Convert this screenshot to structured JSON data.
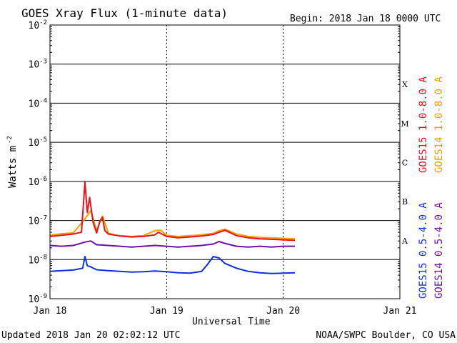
{
  "chart_data": {
    "type": "line",
    "title": "GOES Xray Flux (1-minute data)",
    "begin_label": "Begin:  2018 Jan 18 0000 UTC",
    "xlabel": "Universal Time",
    "ylabel": "Watts m",
    "ylabel_exponent": "-2",
    "y_scale": "log",
    "ylim": [
      1e-09,
      0.01
    ],
    "y_ticks": [
      {
        "value": 0.01,
        "mantissa": "10",
        "exp": "-2"
      },
      {
        "value": 0.001,
        "mantissa": "10",
        "exp": "-3"
      },
      {
        "value": 0.0001,
        "mantissa": "10",
        "exp": "-4"
      },
      {
        "value": 1e-05,
        "mantissa": "10",
        "exp": "-5"
      },
      {
        "value": 1e-06,
        "mantissa": "10",
        "exp": "-6"
      },
      {
        "value": 1e-07,
        "mantissa": "10",
        "exp": "-7"
      },
      {
        "value": 1e-08,
        "mantissa": "10",
        "exp": "-8"
      },
      {
        "value": 1e-09,
        "mantissa": "10",
        "exp": "-9"
      }
    ],
    "x_ticks": [
      {
        "value": 0,
        "label": "Jan 18"
      },
      {
        "value": 1,
        "label": "Jan 19"
      },
      {
        "value": 2,
        "label": "Jan 20"
      },
      {
        "value": 3,
        "label": "Jan 21"
      }
    ],
    "xlim": [
      0,
      3
    ],
    "flare_classes": [
      {
        "label": "X",
        "value": 0.00031623
      },
      {
        "label": "M",
        "value": 3.1623e-05
      },
      {
        "label": "C",
        "value": 3.1623e-06
      },
      {
        "label": "B",
        "value": 3.1623e-07
      },
      {
        "label": "A",
        "value": 3.1623e-08
      }
    ],
    "legend_right": [
      {
        "text": "GOES15 1.0-8.0 A",
        "color": "#e8101a"
      },
      {
        "text": "GOES14 1.0-8.0 A",
        "color": "#f0a000"
      }
    ],
    "legend_left": [
      {
        "text": "GOES15 0.5-4.0 A",
        "color": "#1030e0"
      },
      {
        "text": "GOES14 0.5-4.0 A",
        "color": "#7010a8"
      }
    ],
    "series": [
      {
        "name": "GOES14 1.0-8.0 A",
        "color": "#f0a000",
        "x": [
          0,
          0.1,
          0.2,
          0.3,
          0.35,
          0.4,
          0.45,
          0.5,
          0.55,
          0.6,
          0.7,
          0.8,
          0.9,
          0.95,
          1.0,
          1.1,
          1.2,
          1.3,
          1.4,
          1.45,
          1.5,
          1.55,
          1.6,
          1.7,
          1.8,
          1.9,
          2.0,
          2.1
        ],
        "y": [
          4.2e-08,
          4.6e-08,
          4.8e-08,
          1.1e-07,
          1.8e-07,
          5.5e-08,
          1.3e-07,
          4.8e-08,
          4.3e-08,
          4.1e-08,
          3.9e-08,
          4.1e-08,
          5.5e-08,
          5.6e-08,
          4.2e-08,
          3.9e-08,
          4.1e-08,
          4.3e-08,
          4.7e-08,
          5.5e-08,
          6e-08,
          5.2e-08,
          4.5e-08,
          3.9e-08,
          3.7e-08,
          3.6e-08,
          3.5e-08,
          3.4e-08
        ]
      },
      {
        "name": "GOES15 1.0-8.0 A",
        "color": "#e8101a",
        "x": [
          0,
          0.1,
          0.2,
          0.27,
          0.3,
          0.32,
          0.34,
          0.37,
          0.4,
          0.43,
          0.45,
          0.47,
          0.5,
          0.6,
          0.7,
          0.8,
          0.9,
          0.93,
          1.0,
          1.1,
          1.2,
          1.3,
          1.4,
          1.45,
          1.5,
          1.55,
          1.6,
          1.7,
          1.8,
          1.9,
          2.0,
          2.1
        ],
        "y": [
          3.9e-08,
          4.2e-08,
          4.5e-08,
          5e-08,
          9.5e-07,
          1.6e-07,
          3.9e-07,
          9e-08,
          4.8e-08,
          1e-07,
          1.2e-07,
          5.5e-08,
          4.5e-08,
          4e-08,
          3.8e-08,
          3.9e-08,
          4.3e-08,
          5e-08,
          3.9e-08,
          3.6e-08,
          3.8e-08,
          4e-08,
          4.4e-08,
          5e-08,
          5.6e-08,
          4.8e-08,
          4.1e-08,
          3.6e-08,
          3.4e-08,
          3.3e-08,
          3.2e-08,
          3.1e-08
        ]
      },
      {
        "name": "GOES14 0.5-4.0 A",
        "color": "#7010a8",
        "x": [
          0,
          0.1,
          0.2,
          0.3,
          0.35,
          0.4,
          0.5,
          0.6,
          0.7,
          0.8,
          0.9,
          1.0,
          1.1,
          1.2,
          1.3,
          1.4,
          1.45,
          1.5,
          1.6,
          1.7,
          1.8,
          1.9,
          2.0,
          2.1
        ],
        "y": [
          2.3e-08,
          2.2e-08,
          2.3e-08,
          2.8e-08,
          3e-08,
          2.4e-08,
          2.3e-08,
          2.2e-08,
          2.1e-08,
          2.2e-08,
          2.3e-08,
          2.2e-08,
          2.1e-08,
          2.2e-08,
          2.3e-08,
          2.5e-08,
          2.9e-08,
          2.6e-08,
          2.2e-08,
          2.1e-08,
          2.2e-08,
          2.1e-08,
          2.2e-08,
          2.2e-08
        ]
      },
      {
        "name": "GOES15 0.5-4.0 A",
        "color": "#1030e0",
        "x": [
          0,
          0.1,
          0.2,
          0.28,
          0.3,
          0.32,
          0.35,
          0.4,
          0.5,
          0.6,
          0.7,
          0.8,
          0.9,
          1.0,
          1.1,
          1.2,
          1.3,
          1.35,
          1.4,
          1.45,
          1.5,
          1.6,
          1.7,
          1.8,
          1.9,
          2.0,
          2.1
        ],
        "y": [
          5e-09,
          5.2e-09,
          5.4e-09,
          6e-09,
          1.2e-08,
          7e-09,
          6.5e-09,
          5.5e-09,
          5.2e-09,
          5e-09,
          4.8e-09,
          4.9e-09,
          5.1e-09,
          4.9e-09,
          4.6e-09,
          4.5e-09,
          5e-09,
          7.5e-09,
          1.2e-08,
          1.1e-08,
          8e-09,
          6e-09,
          5e-09,
          4.6e-09,
          4.4e-09,
          4.5e-09,
          4.6e-09
        ]
      }
    ]
  },
  "footer": {
    "updated": "Updated 2018 Jan 20 02:02:12 UTC",
    "credit": "NOAA/SWPC Boulder, CO USA"
  }
}
